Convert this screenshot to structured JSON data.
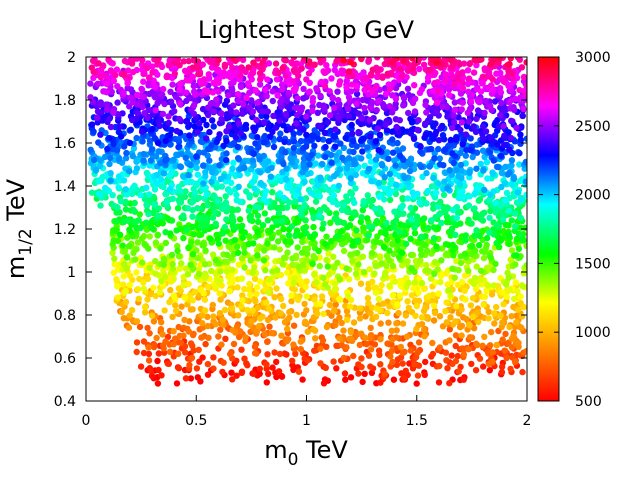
{
  "chart_data": {
    "type": "scatter",
    "title": "Lightest Stop GeV",
    "xlabel": {
      "main": "m",
      "sub": "0",
      "unit": " TeV"
    },
    "ylabel": {
      "main": "m",
      "sub": "1/2",
      "unit": " TeV"
    },
    "xlim": [
      0,
      2
    ],
    "ylim": [
      0.4,
      2
    ],
    "x_ticks": [
      "0",
      "0.5",
      "1",
      "1.5",
      "2"
    ],
    "x_tick_values": [
      0,
      0.5,
      1,
      1.5,
      2
    ],
    "y_ticks": [
      "0.4",
      "0.6",
      "0.8",
      "1",
      "1.2",
      "1.4",
      "1.6",
      "1.8",
      "2"
    ],
    "y_tick_values": [
      0.4,
      0.6,
      0.8,
      1.0,
      1.2,
      1.4,
      1.6,
      1.8,
      2.0
    ],
    "colorbar": {
      "label": "",
      "range": [
        500,
        3000
      ],
      "ticks": [
        "500",
        "1000",
        "1500",
        "2000",
        "2500",
        "3000"
      ],
      "tick_values": [
        500,
        1000,
        1500,
        2000,
        2500,
        3000
      ],
      "palette": [
        "#ff0000",
        "#ff8000",
        "#ffff00",
        "#00ff00",
        "#00ffff",
        "#0000ff",
        "#ff00ff",
        "#ff0000"
      ]
    },
    "series": [
      {
        "name": "points",
        "description": "Dense scatter of sampled (m0, m1/2) points colored by lightest stop mass; stop mass increases roughly linearly with m1/2 (~500 GeV at m1/2=0.5 TeV to ~2800 GeV at m1/2=2 TeV).",
        "n_points": 5000,
        "m0_range": [
          0.02,
          2.0
        ],
        "m12_range": [
          0.48,
          2.0
        ],
        "representative_points": [
          {
            "x": 0.25,
            "y": 0.56,
            "c": 600
          },
          {
            "x": 1.35,
            "y": 0.51,
            "c": 650
          },
          {
            "x": 0.6,
            "y": 0.7,
            "c": 800
          },
          {
            "x": 1.5,
            "y": 0.9,
            "c": 1050
          },
          {
            "x": 0.5,
            "y": 1.1,
            "c": 1400
          },
          {
            "x": 1.0,
            "y": 1.3,
            "c": 1650
          },
          {
            "x": 0.3,
            "y": 1.55,
            "c": 1950
          },
          {
            "x": 1.5,
            "y": 1.7,
            "c": 2200
          },
          {
            "x": 0.9,
            "y": 1.95,
            "c": 2550
          },
          {
            "x": 1.9,
            "y": 1.9,
            "c": 2600
          }
        ]
      }
    ]
  }
}
